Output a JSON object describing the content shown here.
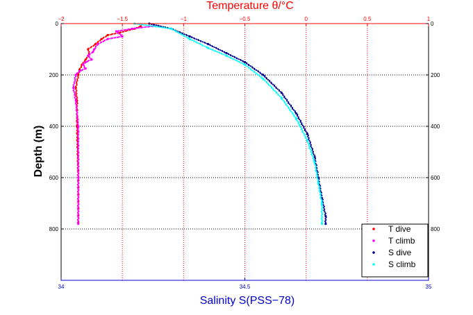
{
  "chart_data": {
    "type": "line",
    "top_xlabel": "Temperature θ/°C",
    "bottom_xlabel": "Salinity S(PSS−78)",
    "ylabel": "Depth (m)",
    "temperature_axis": {
      "range": [
        -2,
        1
      ],
      "ticks": [
        "−2",
        "−1.5",
        "−1",
        "−0.5",
        "0",
        "0.5",
        "1"
      ]
    },
    "salinity_axis": {
      "range": [
        34,
        35
      ],
      "ticks": [
        "34",
        "34.5",
        "35"
      ]
    },
    "depth_axis": {
      "range": [
        0,
        1000
      ],
      "reversed": true,
      "ticks": [
        "0",
        "200",
        "400",
        "600",
        "800"
      ]
    },
    "grid": true,
    "legend_position": "bottom-right",
    "series": [
      {
        "name": "T dive",
        "axis": "temperature",
        "color": "#ff0000",
        "marker": "dot",
        "x": [
          -1.35,
          -1.4,
          -1.52,
          -1.62,
          -1.67,
          -1.72,
          -1.78,
          -1.77,
          -1.8,
          -1.83,
          -1.85,
          -1.86,
          -1.88,
          -1.87,
          -1.87,
          -1.86,
          -1.86
        ],
        "y": [
          10,
          20,
          35,
          45,
          60,
          80,
          100,
          120,
          140,
          160,
          180,
          200,
          250,
          300,
          400,
          600,
          775
        ]
      },
      {
        "name": "T climb",
        "axis": "temperature",
        "color": "#ff00ff",
        "marker": "dot",
        "x": [
          -1.25,
          -1.42,
          -1.55,
          -1.5,
          -1.62,
          -1.7,
          -1.73,
          -1.74,
          -1.78,
          -1.75,
          -1.8,
          -1.82,
          -1.8,
          -1.85,
          -1.88,
          -1.9,
          -1.88,
          -1.86,
          -1.86,
          -1.86
        ],
        "y": [
          10,
          20,
          30,
          50,
          60,
          80,
          100,
          110,
          125,
          140,
          150,
          160,
          175,
          185,
          200,
          250,
          300,
          400,
          600,
          780
        ]
      },
      {
        "name": "S dive",
        "axis": "salinity",
        "color": "#00008b",
        "marker": "dot",
        "x": [
          34.24,
          34.3,
          34.35,
          34.4,
          34.45,
          34.5,
          34.55,
          34.6,
          34.64,
          34.67,
          34.69,
          34.7,
          34.71,
          34.72,
          34.72
        ],
        "y": [
          0,
          20,
          50,
          80,
          115,
          150,
          200,
          270,
          350,
          430,
          520,
          600,
          680,
          750,
          780
        ]
      },
      {
        "name": "S climb",
        "axis": "salinity",
        "color": "#00ffff",
        "marker": "dot",
        "x": [
          34.2,
          34.3,
          34.35,
          34.4,
          34.45,
          34.5,
          34.55,
          34.6,
          34.64,
          34.67,
          34.69,
          34.7,
          34.71,
          34.71
        ],
        "y": [
          0,
          20,
          60,
          95,
          125,
          160,
          215,
          290,
          370,
          455,
          540,
          620,
          700,
          780
        ]
      }
    ]
  }
}
